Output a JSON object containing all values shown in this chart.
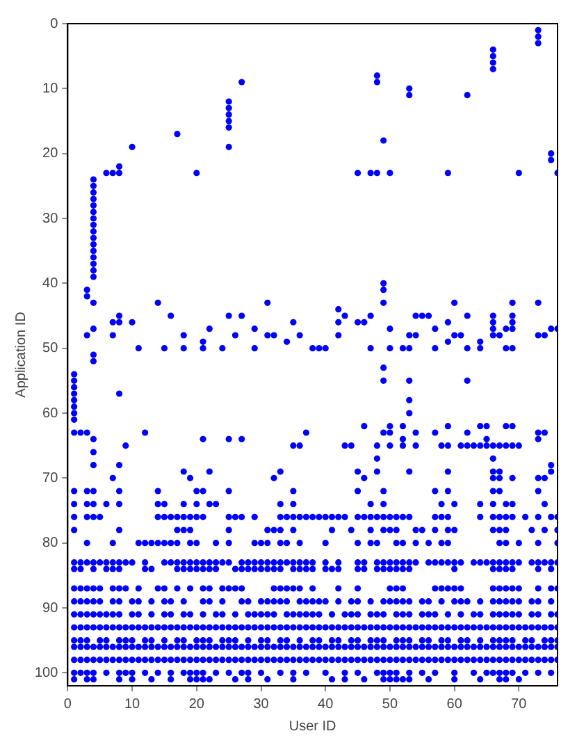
{
  "chart_data": {
    "type": "scatter",
    "xlabel": "User ID",
    "ylabel": "Application ID",
    "xlim": [
      0,
      76
    ],
    "ylim": [
      102,
      0
    ],
    "xticks": [
      0,
      10,
      20,
      30,
      40,
      50,
      60,
      70
    ],
    "yticks": [
      0,
      10,
      20,
      30,
      40,
      50,
      60,
      70,
      80,
      90,
      100
    ],
    "grid": false,
    "legend": false,
    "marker": "circle",
    "series": [
      {
        "color": "#0000ff",
        "x": [
          6,
          7,
          8,
          8,
          10,
          17,
          20,
          25,
          25,
          25,
          25,
          25,
          25,
          27,
          45,
          47,
          48,
          48,
          48,
          49,
          50,
          53,
          53,
          59,
          62,
          66,
          66,
          66,
          66,
          70,
          73,
          73,
          73,
          75,
          75,
          76
        ],
        "values": [
          23,
          23,
          22,
          23,
          19,
          17,
          23,
          12,
          13,
          14,
          15,
          16,
          19,
          9,
          23,
          23,
          23,
          8,
          9,
          18,
          23,
          10,
          11,
          23,
          11,
          4,
          5,
          6,
          7,
          23,
          1,
          2,
          3,
          20,
          21,
          23
        ]
      },
      {
        "color": "#0000ff",
        "x": [
          4,
          4,
          4,
          4,
          4,
          4,
          4,
          4,
          4,
          4,
          4,
          4,
          4,
          4,
          4,
          4,
          4,
          4,
          4,
          4,
          4,
          4,
          4,
          1,
          1,
          1,
          1,
          1,
          1,
          1,
          1,
          1
        ],
        "values": [
          24,
          25,
          26,
          27,
          28,
          29,
          30,
          31,
          32,
          33,
          34,
          35,
          36,
          37,
          38,
          39,
          43,
          47,
          51,
          52,
          64,
          66,
          68,
          54,
          55,
          56,
          57,
          58,
          59,
          60,
          61,
          63
        ]
      },
      {
        "color": "#0000ff",
        "x": [
          2,
          3,
          3,
          3,
          3,
          7,
          7,
          7,
          8,
          8,
          8,
          8,
          10,
          11,
          9,
          12,
          14,
          15,
          16,
          18,
          18,
          18,
          19,
          21,
          21,
          21,
          22,
          22,
          24,
          25,
          25,
          26,
          27,
          27,
          29,
          29,
          31,
          31,
          32,
          32,
          33,
          34,
          35,
          36,
          36,
          35,
          37,
          38,
          39,
          40,
          42,
          42,
          42,
          43,
          43,
          44,
          45,
          45,
          46,
          46,
          46,
          47,
          47,
          48,
          48,
          48,
          49,
          49,
          49,
          49,
          49,
          49,
          50,
          50,
          50,
          50,
          50,
          52,
          52,
          52,
          52,
          53,
          53,
          53,
          53,
          53,
          53,
          54,
          54,
          54,
          54,
          55,
          56,
          57,
          57,
          57,
          58,
          59,
          59,
          59,
          59,
          59,
          60,
          60,
          61,
          61,
          62,
          62,
          62,
          62,
          62,
          63,
          64,
          64,
          64,
          64,
          65,
          65,
          65,
          66,
          66,
          66,
          66,
          66,
          66,
          66,
          66,
          67,
          67,
          67,
          67,
          68,
          68,
          68,
          68,
          69,
          69,
          69,
          69,
          69,
          69,
          69,
          69,
          70,
          73,
          73,
          73,
          73,
          73,
          74,
          74,
          74,
          75,
          75,
          75,
          76
        ],
        "values": [
          63,
          63,
          41,
          42,
          48,
          46,
          48,
          70,
          45,
          46,
          57,
          68,
          46,
          50,
          65,
          63,
          43,
          50,
          45,
          48,
          50,
          69,
          70,
          49,
          50,
          64,
          47,
          69,
          50,
          45,
          64,
          48,
          45,
          64,
          47,
          50,
          43,
          48,
          48,
          70,
          69,
          49,
          46,
          48,
          65,
          65,
          63,
          50,
          50,
          50,
          44,
          46,
          48,
          45,
          65,
          65,
          69,
          46,
          46,
          62,
          70,
          45,
          50,
          65,
          67,
          69,
          40,
          41,
          43,
          53,
          55,
          63,
          62,
          63,
          65,
          47,
          50,
          50,
          62,
          64,
          65,
          48,
          50,
          55,
          58,
          60,
          69,
          45,
          48,
          63,
          65,
          45,
          45,
          47,
          50,
          63,
          65,
          46,
          49,
          62,
          65,
          69,
          43,
          48,
          48,
          65,
          45,
          50,
          55,
          63,
          65,
          65,
          49,
          50,
          62,
          65,
          62,
          64,
          65,
          45,
          46,
          47,
          48,
          65,
          67,
          69,
          70,
          48,
          65,
          69,
          70,
          47,
          50,
          62,
          65,
          50,
          62,
          65,
          43,
          45,
          46,
          47,
          70,
          65,
          43,
          48,
          63,
          64,
          70,
          48,
          63,
          70,
          47,
          68,
          69,
          47
        ]
      },
      {
        "color": "#0000ff",
        "x": [
          1,
          3,
          4,
          8,
          14,
          20,
          21,
          25,
          35,
          45,
          49,
          57,
          59,
          66,
          67,
          73
        ],
        "values": [
          72,
          72,
          72,
          72,
          72,
          72,
          72,
          72,
          72,
          72,
          72,
          72,
          72,
          72,
          72,
          72
        ]
      },
      {
        "color": "#0000ff",
        "x": [
          1,
          3,
          4,
          6,
          8,
          14,
          15,
          18,
          20,
          22,
          23,
          33,
          35,
          47,
          49,
          58,
          60,
          64,
          66,
          68,
          69,
          74
        ],
        "values": [
          74,
          74,
          74,
          74,
          74,
          74,
          74,
          74,
          74,
          74,
          74,
          74,
          74,
          74,
          74,
          74,
          74,
          74,
          74,
          74,
          74,
          74
        ]
      },
      {
        "color": "#0000ff",
        "x": [
          1,
          3,
          4,
          5,
          14,
          15,
          16,
          17,
          18,
          19,
          20,
          21,
          25,
          26,
          27,
          29,
          33,
          34,
          35,
          36,
          37,
          38,
          39,
          40,
          41,
          42,
          43,
          45,
          46,
          47,
          48,
          49,
          50,
          51,
          52,
          53,
          57,
          58,
          59,
          64,
          66,
          67,
          68,
          69,
          71,
          73,
          75,
          76
        ],
        "values": [
          76,
          76,
          76,
          76,
          76,
          76,
          76,
          76,
          76,
          76,
          76,
          76,
          76,
          76,
          76,
          76,
          76,
          76,
          76,
          76,
          76,
          76,
          76,
          76,
          76,
          76,
          76,
          76,
          76,
          76,
          76,
          76,
          76,
          76,
          76,
          76,
          76,
          76,
          76,
          76,
          76,
          76,
          76,
          76,
          76,
          76,
          76,
          76
        ]
      },
      {
        "color": "#0000ff",
        "x": [
          1,
          8,
          17,
          18,
          19,
          25,
          31,
          32,
          33,
          35,
          41,
          44,
          47,
          49,
          50,
          51,
          54,
          55,
          57,
          59,
          60,
          66,
          67,
          68,
          72,
          74,
          76
        ],
        "values": [
          78,
          78,
          78,
          78,
          78,
          78,
          78,
          78,
          78,
          78,
          78,
          78,
          78,
          78,
          78,
          78,
          78,
          78,
          78,
          78,
          78,
          78,
          78,
          78,
          78,
          78,
          78
        ]
      },
      {
        "color": "#0000ff",
        "x": [
          3,
          7,
          11,
          12,
          13,
          14,
          15,
          16,
          17,
          19,
          20,
          23,
          25,
          29,
          30,
          31,
          33,
          34,
          36,
          40,
          45,
          47,
          48,
          51,
          52,
          54,
          56,
          58,
          59,
          67,
          68,
          70,
          73,
          76
        ],
        "values": [
          80,
          80,
          80,
          80,
          80,
          80,
          80,
          80,
          80,
          80,
          80,
          80,
          80,
          80,
          80,
          80,
          80,
          80,
          80,
          80,
          80,
          80,
          80,
          80,
          80,
          80,
          80,
          80,
          80,
          80,
          80,
          80,
          80,
          80
        ]
      },
      {
        "color": "#0000ff",
        "x": [
          1,
          2,
          3,
          4,
          5,
          6,
          7,
          8,
          9,
          10,
          12,
          15,
          16,
          17,
          18,
          19,
          20,
          21,
          22,
          23,
          24,
          25,
          27,
          28,
          29,
          30,
          31,
          32,
          33,
          34,
          35,
          36,
          37,
          38,
          40,
          42,
          45,
          46,
          48,
          49,
          50,
          51,
          52,
          53,
          54,
          56,
          57,
          58,
          59,
          60,
          61,
          63,
          64,
          65,
          66,
          67,
          68,
          69,
          70,
          72,
          73,
          74,
          75,
          76
        ],
        "values": [
          83,
          83,
          83,
          83,
          83,
          83,
          83,
          83,
          83,
          83,
          83,
          83,
          83,
          83,
          83,
          83,
          83,
          83,
          83,
          83,
          83,
          83,
          83,
          83,
          83,
          83,
          83,
          83,
          83,
          83,
          83,
          83,
          83,
          83,
          83,
          83,
          83,
          83,
          83,
          83,
          83,
          83,
          83,
          83,
          83,
          83,
          83,
          83,
          83,
          83,
          83,
          83,
          83,
          83,
          83,
          83,
          83,
          83,
          83,
          83,
          83,
          83,
          83,
          83
        ]
      },
      {
        "color": "#0000ff",
        "x": [
          1,
          2,
          4,
          6,
          7,
          8,
          12,
          13,
          17,
          18,
          19,
          20,
          21,
          22,
          23,
          26,
          27,
          28,
          29,
          30,
          31,
          32,
          33,
          35,
          36,
          37,
          38,
          40,
          41,
          42,
          45,
          46,
          48,
          49,
          50,
          51,
          52,
          53,
          60,
          66,
          67,
          68,
          69,
          73,
          75
        ],
        "values": [
          84,
          84,
          84,
          84,
          84,
          84,
          84,
          84,
          84,
          84,
          84,
          84,
          84,
          84,
          84,
          84,
          84,
          84,
          84,
          84,
          84,
          84,
          84,
          84,
          84,
          84,
          84,
          84,
          84,
          84,
          84,
          84,
          84,
          84,
          84,
          84,
          84,
          84,
          84,
          84,
          84,
          84,
          84,
          84,
          84
        ]
      },
      {
        "color": "#0000ff",
        "x": [
          1,
          2,
          3,
          4,
          5,
          7,
          8,
          9,
          11,
          14,
          15,
          17,
          19,
          21,
          22,
          24,
          25,
          26,
          27,
          32,
          33,
          34,
          35,
          36,
          38,
          42,
          45,
          50,
          51,
          52,
          57,
          58,
          59,
          60,
          61,
          66,
          67,
          68,
          69,
          70,
          73,
          75,
          76
        ],
        "values": [
          87,
          87,
          87,
          87,
          87,
          87,
          87,
          87,
          87,
          87,
          87,
          87,
          87,
          87,
          87,
          87,
          87,
          87,
          87,
          87,
          87,
          87,
          87,
          87,
          87,
          87,
          87,
          87,
          87,
          87,
          87,
          87,
          87,
          87,
          87,
          87,
          87,
          87,
          87,
          87,
          87,
          87,
          87
        ]
      },
      {
        "color": "#0000ff",
        "x": [
          1,
          2,
          3,
          4,
          5,
          7,
          8,
          10,
          11,
          13,
          15,
          16,
          18,
          21,
          22,
          24,
          27,
          28,
          30,
          31,
          32,
          33,
          34,
          36,
          37,
          38,
          39,
          40,
          42,
          44,
          45,
          47,
          49,
          50,
          51,
          52,
          53,
          55,
          56,
          58,
          60,
          61,
          62,
          64,
          66,
          67,
          68,
          69,
          70,
          72,
          73,
          75
        ],
        "values": [
          89,
          89,
          89,
          89,
          89,
          89,
          89,
          89,
          89,
          89,
          89,
          89,
          89,
          89,
          89,
          89,
          89,
          89,
          89,
          89,
          89,
          89,
          89,
          89,
          89,
          89,
          89,
          89,
          89,
          89,
          89,
          89,
          89,
          89,
          89,
          89,
          89,
          89,
          89,
          89,
          89,
          89,
          89,
          89,
          89,
          89,
          89,
          89,
          89,
          89,
          89,
          89
        ]
      },
      {
        "color": "#0000ff",
        "x": [
          1,
          2,
          3,
          4,
          5,
          6,
          7,
          8,
          10,
          11,
          13,
          15,
          16,
          18,
          19,
          21,
          23,
          24,
          26,
          28,
          29,
          30,
          31,
          32,
          34,
          35,
          36,
          37,
          38,
          39,
          41,
          43,
          44,
          45,
          47,
          48,
          49,
          51,
          52,
          53,
          55,
          56,
          57,
          59,
          61,
          63,
          64,
          66,
          67,
          68,
          69,
          70,
          72,
          73,
          75,
          76
        ],
        "values": [
          91,
          91,
          91,
          91,
          91,
          91,
          91,
          91,
          91,
          91,
          91,
          91,
          91,
          91,
          91,
          91,
          91,
          91,
          91,
          91,
          91,
          91,
          91,
          91,
          91,
          91,
          91,
          91,
          91,
          91,
          91,
          91,
          91,
          91,
          91,
          91,
          91,
          91,
          91,
          91,
          91,
          91,
          91,
          91,
          91,
          91,
          91,
          91,
          91,
          91,
          91,
          91,
          91,
          91,
          91,
          91
        ]
      },
      {
        "color": "#0000ff",
        "x": [
          1,
          2,
          3,
          4,
          5,
          6,
          7,
          8,
          9,
          10,
          11,
          12,
          13,
          14,
          15,
          16,
          17,
          18,
          19,
          20,
          21,
          22,
          23,
          24,
          25,
          26,
          27,
          28,
          29,
          30,
          31,
          32,
          33,
          34,
          35,
          36,
          37,
          38,
          39,
          40,
          41,
          42,
          43,
          44,
          45,
          46,
          47,
          48,
          49,
          50,
          51,
          52,
          53,
          54,
          55,
          56,
          57,
          58,
          59,
          60,
          61,
          62,
          63,
          64,
          65,
          66,
          67,
          68,
          69,
          70,
          71,
          72,
          73,
          74,
          75,
          76
        ],
        "values": [
          93,
          93,
          93,
          93,
          93,
          93,
          93,
          93,
          93,
          93,
          93,
          93,
          93,
          93,
          93,
          93,
          93,
          93,
          93,
          93,
          93,
          93,
          93,
          93,
          93,
          93,
          93,
          93,
          93,
          93,
          93,
          93,
          93,
          93,
          93,
          93,
          93,
          93,
          93,
          93,
          93,
          93,
          93,
          93,
          93,
          93,
          93,
          93,
          93,
          93,
          93,
          93,
          93,
          93,
          93,
          93,
          93,
          93,
          93,
          93,
          93,
          93,
          93,
          93,
          93,
          93,
          93,
          93,
          93,
          93,
          93,
          93,
          93,
          93,
          93,
          93
        ]
      },
      {
        "color": "#0000ff",
        "x": [
          1,
          2,
          3,
          5,
          6,
          8,
          9,
          10,
          12,
          13,
          15,
          17,
          18,
          20,
          21,
          22,
          24,
          25,
          26,
          28,
          30,
          31,
          33,
          34,
          36,
          38,
          39,
          41,
          42,
          44,
          45,
          47,
          48,
          49,
          51,
          52,
          53,
          55,
          56,
          58,
          59,
          61,
          62,
          64,
          66,
          67,
          68,
          69,
          71,
          72,
          74,
          75,
          76
        ],
        "values": [
          95,
          95,
          95,
          95,
          95,
          95,
          95,
          95,
          95,
          95,
          95,
          95,
          95,
          95,
          95,
          95,
          95,
          95,
          95,
          95,
          95,
          95,
          95,
          95,
          95,
          95,
          95,
          95,
          95,
          95,
          95,
          95,
          95,
          95,
          95,
          95,
          95,
          95,
          95,
          95,
          95,
          95,
          95,
          95,
          95,
          95,
          95,
          95,
          95,
          95,
          95,
          95,
          95
        ]
      },
      {
        "color": "#0000ff",
        "x": [
          1,
          2,
          3,
          4,
          5,
          6,
          7,
          8,
          9,
          10,
          11,
          12,
          13,
          14,
          15,
          16,
          17,
          18,
          19,
          20,
          21,
          22,
          23,
          24,
          25,
          26,
          27,
          28,
          29,
          30,
          31,
          32,
          33,
          34,
          35,
          36,
          37,
          38,
          39,
          40,
          41,
          42,
          43,
          44,
          45,
          46,
          47,
          48,
          49,
          50,
          51,
          52,
          53,
          54,
          55,
          56,
          57,
          58,
          59,
          60,
          61,
          62,
          63,
          64,
          65,
          66,
          67,
          68,
          69,
          70,
          71,
          72,
          73,
          74,
          75,
          76
        ],
        "values": [
          96,
          96,
          96,
          96,
          96,
          96,
          96,
          96,
          96,
          96,
          96,
          96,
          96,
          96,
          96,
          96,
          96,
          96,
          96,
          96,
          96,
          96,
          96,
          96,
          96,
          96,
          96,
          96,
          96,
          96,
          96,
          96,
          96,
          96,
          96,
          96,
          96,
          96,
          96,
          96,
          96,
          96,
          96,
          96,
          96,
          96,
          96,
          96,
          96,
          96,
          96,
          96,
          96,
          96,
          96,
          96,
          96,
          96,
          96,
          96,
          96,
          96,
          96,
          96,
          96,
          96,
          96,
          96,
          96,
          96,
          96,
          96,
          96,
          96,
          96,
          96
        ]
      },
      {
        "color": "#0000ff",
        "x": [
          1,
          2,
          3,
          4,
          5,
          6,
          7,
          8,
          9,
          10,
          11,
          12,
          13,
          14,
          15,
          16,
          17,
          18,
          19,
          20,
          21,
          22,
          23,
          24,
          25,
          26,
          27,
          28,
          29,
          30,
          31,
          32,
          33,
          34,
          35,
          36,
          37,
          38,
          39,
          40,
          41,
          42,
          43,
          44,
          45,
          46,
          47,
          48,
          49,
          50,
          51,
          52,
          53,
          54,
          55,
          56,
          57,
          58,
          59,
          60,
          61,
          62,
          63,
          64,
          65,
          66,
          67,
          68,
          69,
          70,
          71,
          72,
          73,
          74,
          75,
          76
        ],
        "values": [
          98,
          98,
          98,
          98,
          98,
          98,
          98,
          98,
          98,
          98,
          98,
          98,
          98,
          98,
          98,
          98,
          98,
          98,
          98,
          98,
          98,
          98,
          98,
          98,
          98,
          98,
          98,
          98,
          98,
          98,
          98,
          98,
          98,
          98,
          98,
          98,
          98,
          98,
          98,
          98,
          98,
          98,
          98,
          98,
          98,
          98,
          98,
          98,
          98,
          98,
          98,
          98,
          98,
          98,
          98,
          98,
          98,
          98,
          98,
          98,
          98,
          98,
          98,
          98,
          98,
          98,
          98,
          98,
          98,
          98,
          98,
          98,
          98,
          98,
          98,
          98
        ]
      },
      {
        "color": "#0000ff",
        "x": [
          1,
          2,
          3,
          4,
          6,
          8,
          9,
          10,
          12,
          14,
          16,
          18,
          19,
          20,
          21,
          23,
          25,
          27,
          28,
          30,
          33,
          35,
          37,
          40,
          43,
          45,
          48,
          49,
          50,
          51,
          53,
          55,
          57,
          60,
          63,
          65,
          66,
          67,
          68,
          69,
          71,
          73,
          75
        ],
        "values": [
          100,
          100,
          100,
          100,
          100,
          100,
          100,
          100,
          100,
          100,
          100,
          100,
          100,
          100,
          100,
          100,
          100,
          100,
          100,
          100,
          100,
          100,
          100,
          100,
          100,
          100,
          100,
          100,
          100,
          100,
          100,
          100,
          100,
          100,
          100,
          100,
          100,
          100,
          100,
          100,
          100,
          100,
          100
        ]
      },
      {
        "color": "#0000ff",
        "x": [
          1,
          3,
          4,
          8,
          10,
          13,
          16,
          19,
          20,
          21,
          22,
          26,
          28,
          31,
          35,
          41,
          43,
          46,
          49,
          50,
          51,
          52,
          53,
          56,
          60,
          64,
          67,
          68,
          70
        ],
        "values": [
          101,
          101,
          101,
          101,
          101,
          101,
          101,
          101,
          101,
          101,
          101,
          101,
          101,
          101,
          101,
          101,
          101,
          101,
          101,
          101,
          101,
          101,
          101,
          101,
          101,
          101,
          101,
          101,
          101
        ]
      }
    ]
  }
}
